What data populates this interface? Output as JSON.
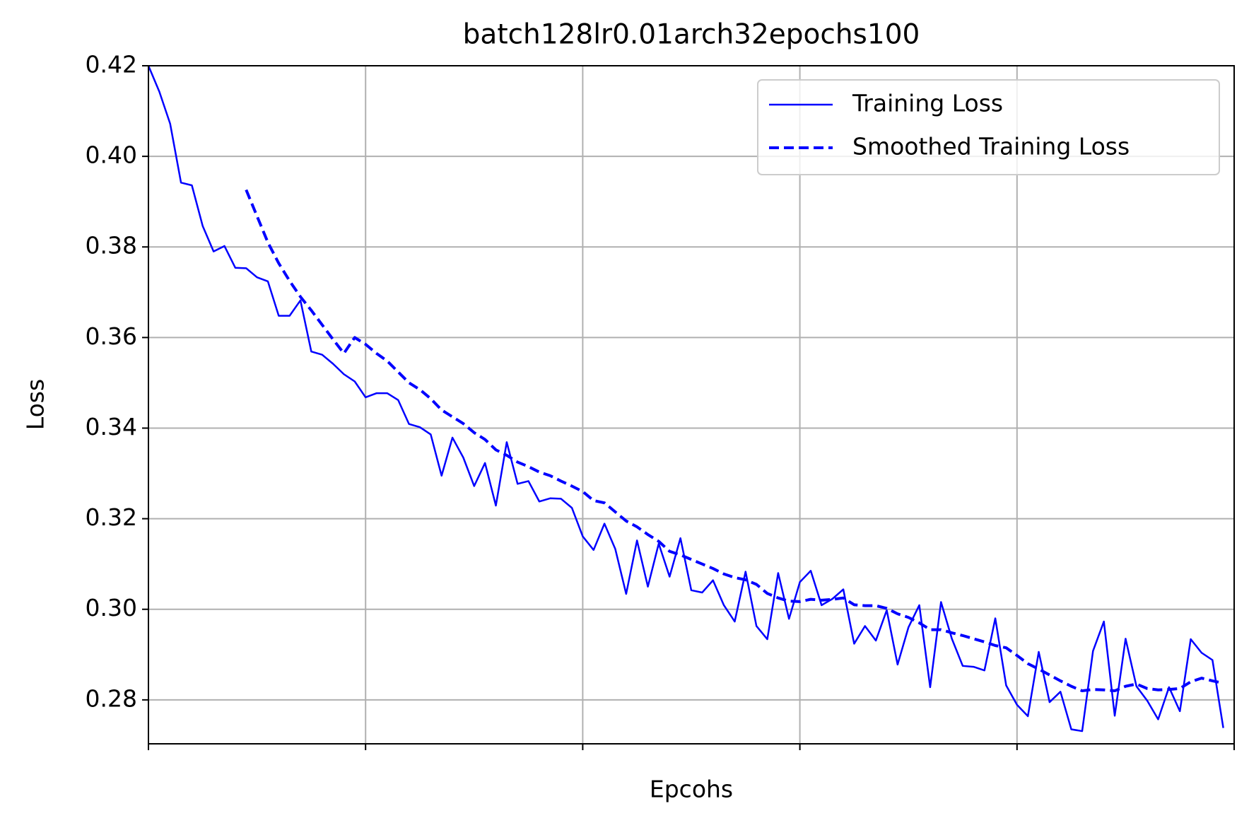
{
  "chart_data": {
    "type": "line",
    "title": "batch128lr0.01arch32epochs100",
    "x_label": "Epcohs",
    "y_label": "Loss",
    "xlim": [
      0,
      100
    ],
    "xticks": [
      0,
      20,
      40,
      60,
      80,
      100
    ],
    "ylim": [
      0.2703,
      0.42
    ],
    "yticks": [
      {
        "value": 0.28,
        "label": "0.28"
      },
      {
        "value": 0.3,
        "label": "0.30"
      },
      {
        "value": 0.32,
        "label": "0.32"
      },
      {
        "value": 0.34,
        "label": "0.34"
      },
      {
        "value": 0.36,
        "label": "0.36"
      },
      {
        "value": 0.38,
        "label": "0.38"
      },
      {
        "value": 0.4,
        "label": "0.40"
      },
      {
        "value": 0.42,
        "label": "0.42"
      }
    ],
    "grid": true,
    "legend": "upper right",
    "x": [
      0,
      1,
      2,
      3,
      4,
      5,
      6,
      7,
      8,
      9,
      10,
      11,
      12,
      13,
      14,
      15,
      16,
      17,
      18,
      19,
      20,
      21,
      22,
      23,
      24,
      25,
      26,
      27,
      28,
      29,
      30,
      31,
      32,
      33,
      34,
      35,
      36,
      37,
      38,
      39,
      40,
      41,
      42,
      43,
      44,
      45,
      46,
      47,
      48,
      49,
      50,
      51,
      52,
      53,
      54,
      55,
      56,
      57,
      58,
      59,
      60,
      61,
      62,
      63,
      64,
      65,
      66,
      67,
      68,
      69,
      70,
      71,
      72,
      73,
      74,
      75,
      76,
      77,
      78,
      79,
      80,
      81,
      82,
      83,
      84,
      85,
      86,
      87,
      88,
      89,
      90,
      91,
      92,
      93,
      94,
      95,
      96,
      97,
      98,
      99
    ],
    "series": [
      {
        "name": "Training Loss",
        "color": "#0000ff",
        "dash": "solid",
        "values": [
          0.42,
          0.4143,
          0.4072,
          0.3942,
          0.3936,
          0.3846,
          0.379,
          0.3802,
          0.3754,
          0.3753,
          0.3733,
          0.3724,
          0.3648,
          0.3648,
          0.3682,
          0.3569,
          0.3562,
          0.3542,
          0.3519,
          0.3503,
          0.3468,
          0.3477,
          0.3477,
          0.3462,
          0.3409,
          0.3402,
          0.3386,
          0.3295,
          0.3379,
          0.3335,
          0.3272,
          0.3323,
          0.3229,
          0.3369,
          0.3277,
          0.3283,
          0.3238,
          0.3245,
          0.3244,
          0.3224,
          0.3161,
          0.3131,
          0.3189,
          0.3133,
          0.3034,
          0.3152,
          0.305,
          0.3145,
          0.3072,
          0.3157,
          0.3042,
          0.3037,
          0.3064,
          0.3009,
          0.2973,
          0.3083,
          0.2963,
          0.2934,
          0.308,
          0.2979,
          0.306,
          0.3085,
          0.3009,
          0.3023,
          0.3044,
          0.2924,
          0.2963,
          0.2931,
          0.2998,
          0.2878,
          0.296,
          0.3009,
          0.2828,
          0.3016,
          0.2935,
          0.2875,
          0.2873,
          0.2865,
          0.298,
          0.2832,
          0.2789,
          0.2764,
          0.2906,
          0.2795,
          0.2818,
          0.2735,
          0.2731,
          0.2908,
          0.2973,
          0.2765,
          0.2935,
          0.283,
          0.2798,
          0.2757,
          0.2828,
          0.2775,
          0.2934,
          0.2904,
          0.2888,
          0.2738
        ]
      },
      {
        "name": "Smoothed Training Loss",
        "color": "#0000ff",
        "dash": "dashed",
        "values": [
          null,
          null,
          null,
          null,
          null,
          null,
          null,
          null,
          null,
          0.3926,
          0.3868,
          0.381,
          0.3764,
          0.3725,
          0.369,
          0.366,
          0.3628,
          0.3596,
          0.3565,
          0.36,
          0.3585,
          0.3565,
          0.3548,
          0.3524,
          0.35,
          0.3485,
          0.3465,
          0.344,
          0.3425,
          0.341,
          0.339,
          0.3375,
          0.3352,
          0.334,
          0.3325,
          0.3315,
          0.3303,
          0.3295,
          0.3283,
          0.3272,
          0.326,
          0.324,
          0.3235,
          0.3215,
          0.3195,
          0.3182,
          0.3165,
          0.315,
          0.3128,
          0.312,
          0.311,
          0.31,
          0.309,
          0.3078,
          0.307,
          0.3065,
          0.3055,
          0.3035,
          0.3025,
          0.3018,
          0.3017,
          0.3022,
          0.302,
          0.3022,
          0.3025,
          0.301,
          0.3008,
          0.3008,
          0.3002,
          0.299,
          0.2982,
          0.297,
          0.2955,
          0.2955,
          0.2948,
          0.2942,
          0.2935,
          0.2928,
          0.292,
          0.2915,
          0.2898,
          0.288,
          0.2868,
          0.2855,
          0.2842,
          0.283,
          0.282,
          0.2823,
          0.2822,
          0.282,
          0.283,
          0.2835,
          0.2825,
          0.2822,
          0.2823,
          0.2825,
          0.284,
          0.2848,
          0.2842,
          0.2837
        ]
      }
    ]
  }
}
